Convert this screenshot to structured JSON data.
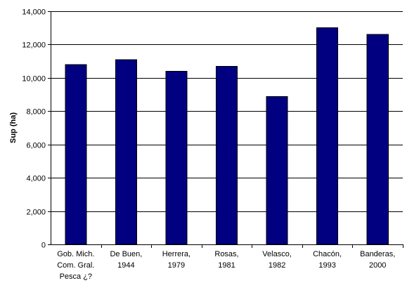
{
  "chart_data": {
    "type": "bar",
    "title": "",
    "xlabel": "",
    "ylabel": "Sup (ha)",
    "ylim": [
      0,
      14000
    ],
    "ytick_step": 2000,
    "ytick_labels": [
      "0",
      "2,000",
      "4,000",
      "6,000",
      "8,000",
      "10,000",
      "12,000",
      "14,000"
    ],
    "grid": true,
    "legend": "none",
    "bar_color": "#000080",
    "categories": [
      [
        "Gob. Mich.",
        "Com. Gral.",
        "Pesca ¿?"
      ],
      [
        "De Buen,",
        "1944"
      ],
      [
        "Herrera,",
        "1979"
      ],
      [
        "Rosas,",
        "1981"
      ],
      [
        "Velasco,",
        "1982"
      ],
      [
        "Chacón,",
        "1993"
      ],
      [
        "Banderas,",
        "2000"
      ]
    ],
    "values": [
      10800,
      11100,
      10400,
      10700,
      8870,
      13000,
      12600
    ]
  }
}
